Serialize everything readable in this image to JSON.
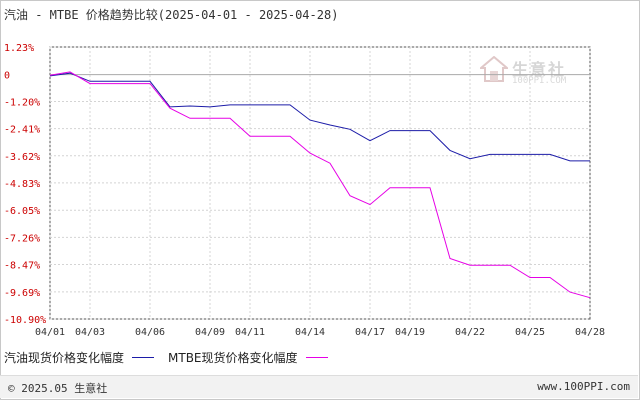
{
  "title": "汽油 - MTBE 价格趋势比较(2025-04-01 - 2025-04-28)",
  "watermark": {
    "name": "生意社",
    "url": "100PPI.COM"
  },
  "footer": {
    "copyright": "© 2025.05 生意社",
    "site": "www.100PPI.com"
  },
  "colors": {
    "series_1": "#1c1ca8",
    "series_2": "#e600e6",
    "grid": "#d4d4d4",
    "zero_line": "#aaaaaa",
    "axis": "#555555",
    "footer_bg": "#f2f2f2"
  },
  "chart_data": {
    "type": "line",
    "title": "汽油 - MTBE 价格趋势比较(2025-04-01 - 2025-04-28)",
    "xlabel": "",
    "ylabel": "",
    "y_ticks": [
      "1.23%",
      "0",
      "-1.20%",
      "-2.41%",
      "-3.62%",
      "-4.83%",
      "-6.05%",
      "-7.26%",
      "-8.47%",
      "-9.69%",
      "-10.90%"
    ],
    "y_tick_values": [
      1.23,
      0,
      -1.2,
      -2.41,
      -3.62,
      -4.83,
      -6.05,
      -7.26,
      -8.47,
      -9.69,
      -10.9
    ],
    "ylim": [
      -10.9,
      1.23
    ],
    "x_ticks": [
      "04/01",
      "04/03",
      "04/06",
      "04/09",
      "04/11",
      "04/14",
      "04/17",
      "04/19",
      "04/22",
      "04/25",
      "04/28"
    ],
    "x_tick_days": [
      1,
      3,
      6,
      9,
      11,
      14,
      17,
      19,
      22,
      25,
      28
    ],
    "xlim": [
      1,
      28
    ],
    "grid": true,
    "legend": "bottom",
    "series": [
      {
        "name": "汽油现货价格变化幅度",
        "color": "#1c1ca8",
        "days": [
          1,
          2,
          3,
          4,
          5,
          6,
          7,
          8,
          9,
          10,
          11,
          12,
          13,
          14,
          15,
          16,
          17,
          18,
          19,
          20,
          21,
          22,
          23,
          24,
          25,
          26,
          27,
          28
        ],
        "values": [
          -0.06,
          0.06,
          -0.3,
          -0.3,
          -0.3,
          -0.3,
          -1.44,
          -1.4,
          -1.44,
          -1.35,
          -1.35,
          -1.35,
          -1.35,
          -2.03,
          -2.25,
          -2.44,
          -2.95,
          -2.5,
          -2.5,
          -2.5,
          -3.38,
          -3.75,
          -3.56,
          -3.56,
          -3.56,
          -3.56,
          -3.85,
          -3.85
        ]
      },
      {
        "name": "MTBE现货价格变化幅度",
        "color": "#e600e6",
        "days": [
          1,
          2,
          3,
          4,
          5,
          6,
          7,
          8,
          9,
          10,
          11,
          12,
          13,
          14,
          15,
          16,
          17,
          18,
          19,
          20,
          21,
          22,
          23,
          24,
          25,
          26,
          27,
          28
        ],
        "values": [
          -0.03,
          0.12,
          -0.4,
          -0.4,
          -0.4,
          -0.4,
          -1.5,
          -1.95,
          -1.95,
          -1.95,
          -2.75,
          -2.75,
          -2.75,
          -3.5,
          -3.95,
          -5.4,
          -5.8,
          -5.05,
          -5.05,
          -5.05,
          -8.2,
          -8.5,
          -8.5,
          -8.5,
          -9.05,
          -9.05,
          -9.7,
          -9.95
        ]
      }
    ]
  }
}
